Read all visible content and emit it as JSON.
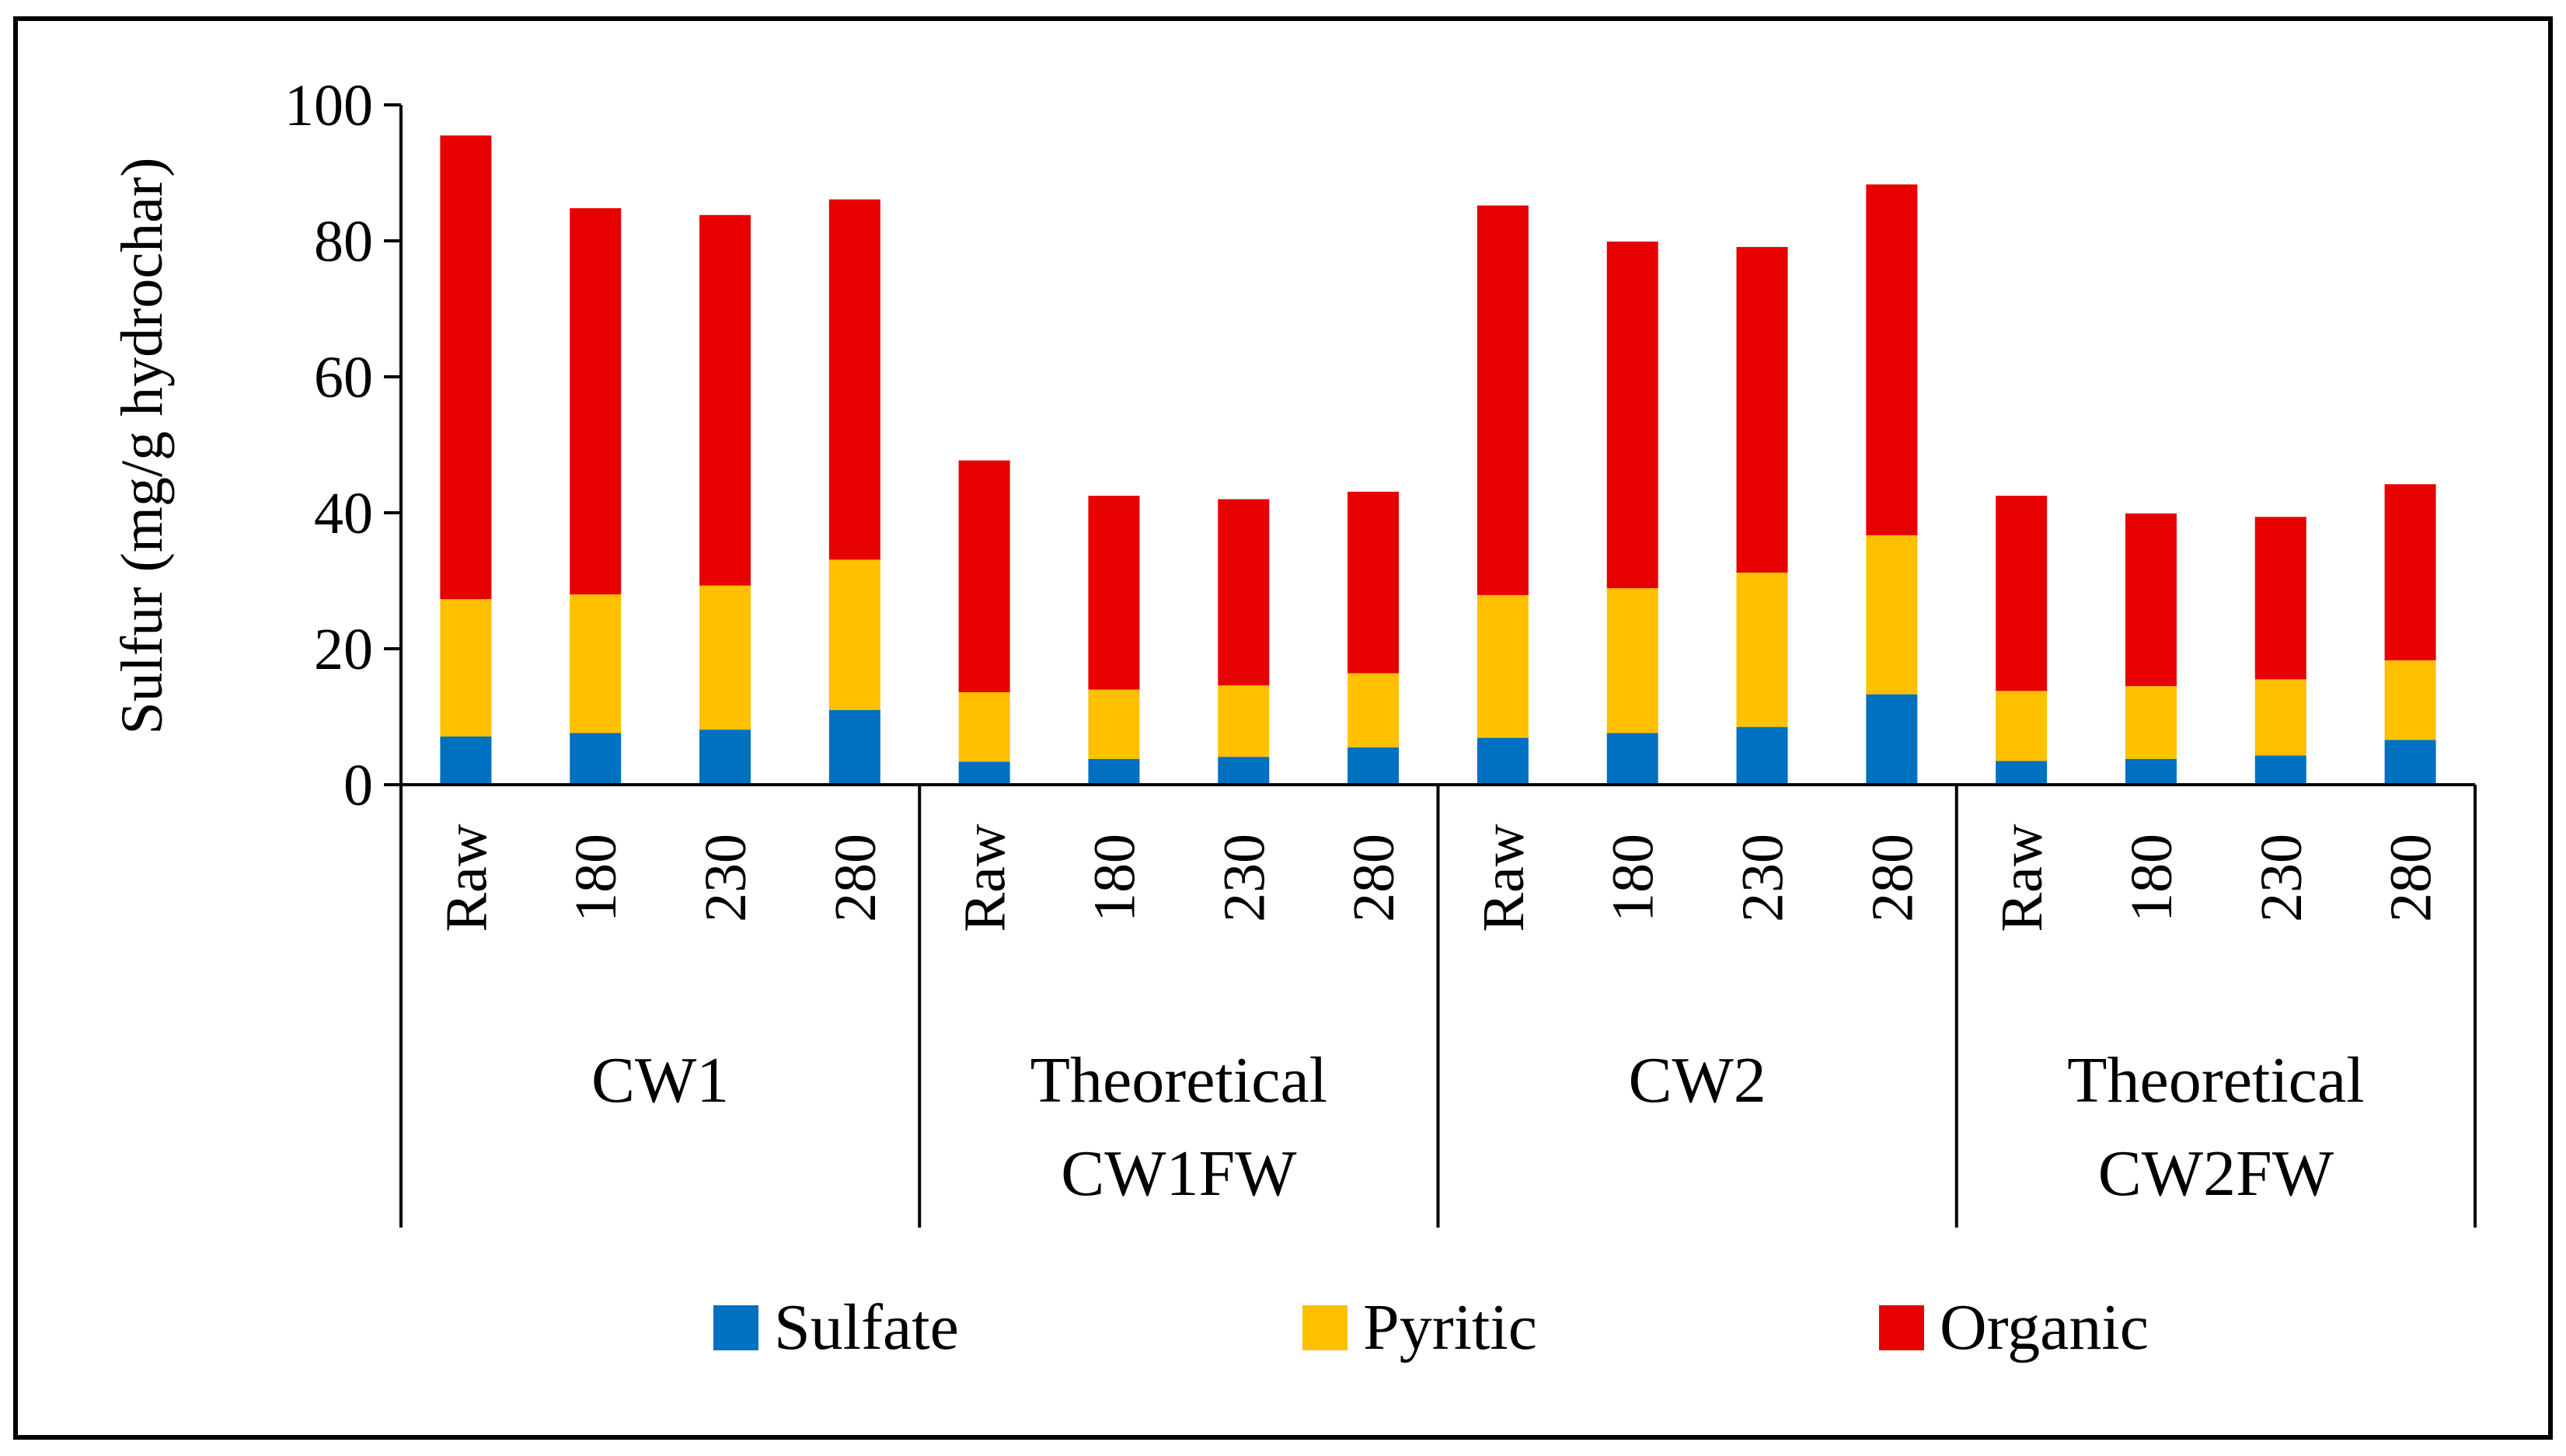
{
  "chart_data": {
    "type": "bar",
    "stacked": true,
    "ylabel": "Sulfur (mg/g hydrochar)",
    "ylim": [
      0,
      100
    ],
    "yticks": [
      0,
      20,
      40,
      60,
      80,
      100
    ],
    "grid": false,
    "legend_position": "bottom",
    "groups": [
      {
        "label_lines": [
          "CW1"
        ],
        "categories": [
          "Raw",
          "180",
          "230",
          "280"
        ]
      },
      {
        "label_lines": [
          "Theoretical",
          "CW1FW"
        ],
        "categories": [
          "Raw",
          "180",
          "230",
          "280"
        ]
      },
      {
        "label_lines": [
          "CW2"
        ],
        "categories": [
          "Raw",
          "180",
          "230",
          "280"
        ]
      },
      {
        "label_lines": [
          "Theoretical",
          "CW2FW"
        ],
        "categories": [
          "Raw",
          "180",
          "230",
          "280"
        ]
      }
    ],
    "series": [
      {
        "name": "Sulfate",
        "color": "#0070C0",
        "values": [
          7.1,
          7.6,
          8.1,
          11.0,
          3.4,
          3.8,
          4.1,
          5.5,
          6.9,
          7.6,
          8.5,
          13.3,
          3.5,
          3.8,
          4.3,
          6.6
        ]
      },
      {
        "name": "Pyritic",
        "color": "#FFC000",
        "values": [
          20.2,
          20.4,
          21.2,
          22.1,
          10.2,
          10.2,
          10.5,
          10.9,
          21.0,
          21.3,
          22.7,
          23.4,
          10.3,
          10.7,
          11.2,
          11.7
        ]
      },
      {
        "name": "Organic",
        "color": "#E60000",
        "values": [
          68.2,
          56.8,
          54.5,
          53.0,
          34.1,
          28.5,
          27.4,
          26.7,
          57.3,
          51.0,
          47.9,
          51.6,
          28.7,
          25.4,
          23.9,
          25.9
        ]
      }
    ]
  }
}
